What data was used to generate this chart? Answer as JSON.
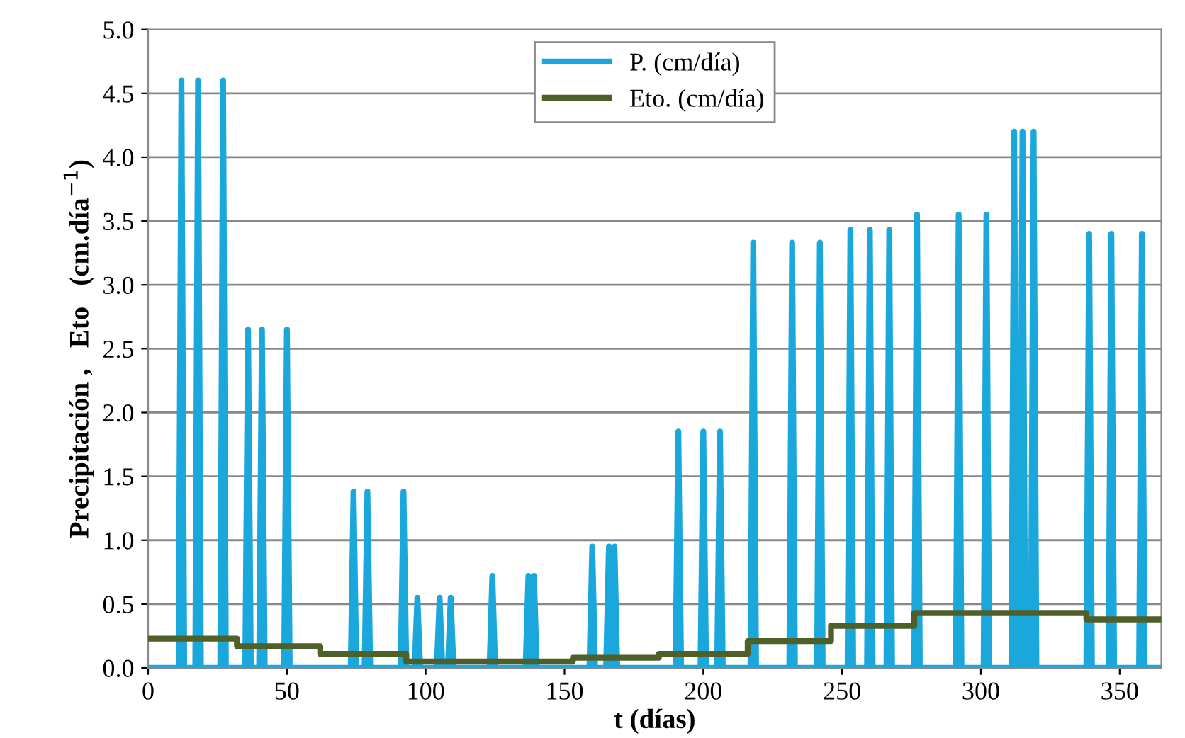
{
  "chart_data": {
    "type": "line",
    "xlabel": "t (días)",
    "ylabel": "Precipitación ,   Eto   (cm.día$^{−1}$)",
    "xlim": [
      0,
      365
    ],
    "xticks": [
      0,
      50,
      100,
      150,
      200,
      250,
      300,
      350
    ],
    "ylim": [
      0,
      5
    ],
    "yticks": [
      {
        "value": 0,
        "label": "0.0"
      },
      {
        "value": 0.5,
        "label": "0.5"
      },
      {
        "value": 1,
        "label": "1.0"
      },
      {
        "value": 1.5,
        "label": "1.5"
      },
      {
        "value": 2,
        "label": "2.0"
      },
      {
        "value": 2.5,
        "label": "2.5"
      },
      {
        "value": 3,
        "label": "3.0"
      },
      {
        "value": 3.5,
        "label": "3.5"
      },
      {
        "value": 4,
        "label": "4.0"
      },
      {
        "value": 4.5,
        "label": "4.5"
      },
      {
        "value": 5,
        "label": "5.0"
      }
    ],
    "grid": "y",
    "legend": "top",
    "marker": "none",
    "line_style": "solid",
    "series": [
      {
        "name": "P. (cm/día)",
        "color": "#1aa7dc",
        "x": [
          0,
          11,
          12,
          13,
          17,
          18,
          19,
          26,
          27,
          28,
          35,
          36,
          37,
          40,
          41,
          42,
          49,
          50,
          51,
          73,
          74,
          75,
          78,
          79,
          80,
          91,
          92,
          93,
          96,
          97,
          98,
          104,
          105,
          106,
          108,
          109,
          110,
          123,
          124,
          125,
          136,
          137,
          138,
          139,
          140,
          159,
          160,
          161,
          165,
          166,
          167,
          168,
          169,
          190,
          191,
          192,
          199,
          200,
          201,
          205,
          206,
          207,
          217,
          218,
          219,
          231,
          232,
          233,
          241,
          242,
          243,
          252,
          253,
          254,
          259,
          260,
          261,
          266,
          267,
          268,
          276,
          277,
          278,
          291,
          292,
          293,
          301,
          302,
          303,
          311,
          312,
          313,
          314,
          315,
          316,
          318,
          319,
          320,
          338,
          339,
          340,
          346,
          347,
          348,
          357,
          358,
          359,
          365
        ],
        "values": [
          0,
          0,
          4.6,
          0,
          0,
          4.6,
          0,
          0,
          4.6,
          0,
          0,
          2.65,
          0,
          0,
          2.65,
          0,
          0,
          2.65,
          0,
          0,
          1.38,
          0,
          0,
          1.38,
          0,
          0,
          1.38,
          0,
          0,
          0.55,
          0,
          0,
          0.55,
          0,
          0,
          0.55,
          0,
          0,
          0.72,
          0,
          0,
          0.72,
          0,
          0.72,
          0,
          0,
          0.95,
          0,
          0,
          0.95,
          0,
          0.95,
          0,
          0,
          1.85,
          0,
          0,
          1.85,
          0,
          0,
          1.85,
          0,
          0,
          3.33,
          0,
          0,
          3.33,
          0,
          0,
          3.33,
          0,
          0,
          3.43,
          0,
          0,
          3.43,
          0,
          0,
          3.43,
          0,
          0,
          3.55,
          0,
          0,
          3.55,
          0,
          0,
          3.55,
          0,
          0,
          4.2,
          0,
          0,
          4.2,
          0,
          0,
          4.2,
          0,
          0,
          3.4,
          0,
          0,
          3.4,
          0,
          0,
          3.4,
          0,
          0
        ]
      },
      {
        "name": "Eto. (cm/día)",
        "color": "#4f5f2a",
        "type": "step",
        "x": [
          0,
          32,
          62,
          93,
          153,
          184,
          216,
          246,
          276,
          338,
          365
        ],
        "values": [
          0.23,
          0.17,
          0.11,
          0.05,
          0.08,
          0.11,
          0.21,
          0.33,
          0.43,
          0.38,
          0.38
        ]
      }
    ]
  }
}
